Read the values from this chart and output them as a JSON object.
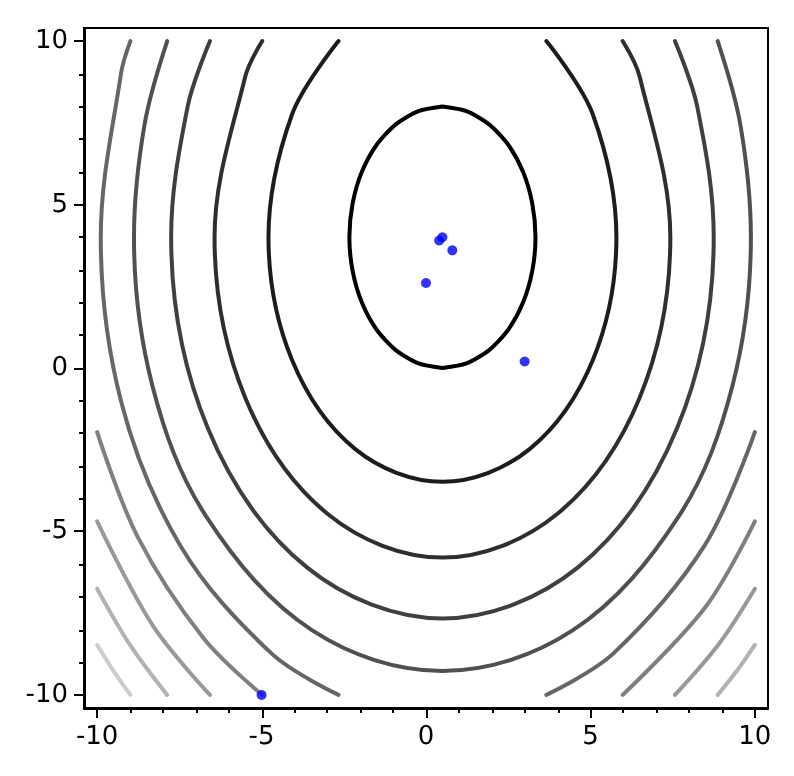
{
  "chart_data": {
    "type": "scatter",
    "xlim": [
      -10.4,
      10.4
    ],
    "ylim": [
      -10.4,
      10.4
    ],
    "xticks": [
      -10,
      {
        "value": -9,
        "label": null
      },
      {
        "value": -8,
        "label": null
      },
      {
        "value": -7,
        "label": null
      },
      {
        "value": -6,
        "label": null
      },
      -5,
      {
        "value": -4,
        "label": null
      },
      {
        "value": -3,
        "label": null
      },
      {
        "value": -2,
        "label": null
      },
      {
        "value": -1,
        "label": null
      },
      0,
      {
        "value": 1,
        "label": null
      },
      {
        "value": 2,
        "label": null
      },
      {
        "value": 3,
        "label": null
      },
      {
        "value": 4,
        "label": null
      },
      5,
      {
        "value": 6,
        "label": null
      },
      {
        "value": 7,
        "label": null
      },
      {
        "value": 8,
        "label": null
      },
      {
        "value": 9,
        "label": null
      },
      10
    ],
    "yticks": [
      -10,
      {
        "value": -9,
        "label": null
      },
      {
        "value": -8,
        "label": null
      },
      {
        "value": -7,
        "label": null
      },
      {
        "value": -6,
        "label": null
      },
      -5,
      {
        "value": -4,
        "label": null
      },
      {
        "value": -3,
        "label": null
      },
      {
        "value": -2,
        "label": null
      },
      {
        "value": -1,
        "label": null
      },
      0,
      {
        "value": 1,
        "label": null
      },
      {
        "value": 2,
        "label": null
      },
      {
        "value": 3,
        "label": null
      },
      {
        "value": 4,
        "label": null
      },
      5,
      {
        "value": 6,
        "label": null
      },
      {
        "value": 7,
        "label": null
      },
      {
        "value": 8,
        "label": null
      },
      {
        "value": 9,
        "label": null
      },
      10
    ],
    "series": [
      {
        "type": "line",
        "marker": "none",
        "color": "#000000",
        "x": [
          0.5,
          1.23,
          1.91,
          2.5,
          2.95,
          3.23,
          3.33,
          3.23,
          2.95,
          2.5,
          1.91,
          1.23,
          0.5,
          null,
          0.5,
          -0.23,
          -0.91,
          -1.5,
          -1.95,
          -2.23,
          -2.33,
          -2.23,
          -1.95,
          -1.5,
          -0.91,
          -0.23,
          0.5
        ],
        "values": [
          0,
          0.14,
          0.54,
          1.17,
          2,
          2.96,
          4,
          5.04,
          6,
          6.83,
          7.46,
          7.86,
          8,
          null,
          8,
          7.86,
          7.46,
          6.83,
          6,
          5.04,
          4,
          2.96,
          2,
          1.17,
          0.54,
          0.14,
          0
        ]
      },
      {
        "type": "line",
        "marker": "none",
        "color": "#1c1c1c",
        "x": [
          3.66,
          5.08,
          5.79,
          5.08,
          3.15,
          0.5,
          -2.15,
          -4.08,
          -4.79,
          -4.08,
          -2.66
        ],
        "values": [
          10,
          7.74,
          4,
          0.26,
          -2.48,
          -3.48,
          -2.48,
          0.26,
          4,
          7.74,
          10
        ]
      },
      {
        "type": "line",
        "marker": "none",
        "color": "#2e2e2e",
        "x": [
          5.98,
          6.5,
          7.43,
          6.5,
          3.96,
          0.5,
          -2.96,
          -5.5,
          -6.43,
          -5.5,
          -4.98
        ],
        "values": [
          10,
          8.9,
          4,
          -0.9,
          -4.49,
          -5.8,
          -4.49,
          -0.9,
          4,
          8.9,
          10
        ]
      },
      {
        "type": "line",
        "marker": "none",
        "color": "#3f3f3f",
        "x": [
          7.57,
          8.25,
          8.75,
          7.64,
          4.62,
          0.5,
          -3.62,
          -6.64,
          -7.75,
          -7.25,
          -6.57
        ],
        "values": [
          10,
          7.99,
          4,
          -1.83,
          -6.1,
          -7.66,
          -6.1,
          -1.83,
          4,
          7.99,
          10
        ]
      },
      {
        "type": "line",
        "marker": "none",
        "color": "#505050",
        "x": [
          8.87,
          9.56,
          9.88,
          9.32,
          7.69,
          4.47,
          0.5,
          -3.47,
          -6.69,
          -8.32,
          -8.88,
          -8.56,
          -7.87
        ],
        "values": [
          10,
          7.44,
          4,
          -0.54,
          -4.53,
          -8.02,
          -9.27,
          -8.02,
          -4.53,
          -0.54,
          4,
          7.44,
          10
        ]
      },
      {
        "type": "line",
        "marker": "none",
        "color": "#666666",
        "x": [
          -8.99,
          -9.27,
          -9.89,
          -9.27,
          -7.46,
          -4.7,
          -2.66,
          null,
          10,
          8.46,
          5.7,
          3.66
        ],
        "values": [
          10,
          9.03,
          4,
          -1.03,
          -5.45,
          -8.73,
          -10,
          null,
          -1.96,
          -5.45,
          -8.73,
          -10
        ]
      },
      {
        "type": "line",
        "marker": "none",
        "color": "#7f7f7f",
        "x": [
          -10,
          -8.76,
          -6.77,
          -4.98,
          null,
          10,
          8.5,
          5.98
        ],
        "values": [
          -1.96,
          -5.18,
          -8.26,
          -10,
          null,
          -4.69,
          -7.31,
          -10
        ]
      },
      {
        "type": "line",
        "marker": "none",
        "color": "#999999",
        "x": [
          -10,
          -8.3,
          -6.57,
          null,
          10,
          8.9,
          7.57
        ],
        "values": [
          -4.69,
          -7.89,
          -10,
          null,
          -6.75,
          -8.45,
          -10
        ]
      },
      {
        "type": "line",
        "marker": "none",
        "color": "#b3b3b3",
        "x": [
          -10,
          -9,
          -7.87,
          null,
          10,
          9.5,
          8.87
        ],
        "values": [
          -6.75,
          -8.47,
          -10,
          null,
          -8.47,
          -9.2,
          -10
        ]
      },
      {
        "type": "line",
        "marker": "none",
        "color": "#cccccc",
        "x": [
          -10,
          -9.5,
          -8.99
        ],
        "values": [
          -8.47,
          -9.27,
          -10
        ]
      },
      {
        "type": "scatter",
        "marker": "circle",
        "color": "#0000ff",
        "x": [
          0.4,
          0.5,
          0.8,
          0,
          3,
          -5
        ],
        "values": [
          3.9,
          4.0,
          3.6,
          2.6,
          0.2,
          -10
        ]
      }
    ]
  }
}
